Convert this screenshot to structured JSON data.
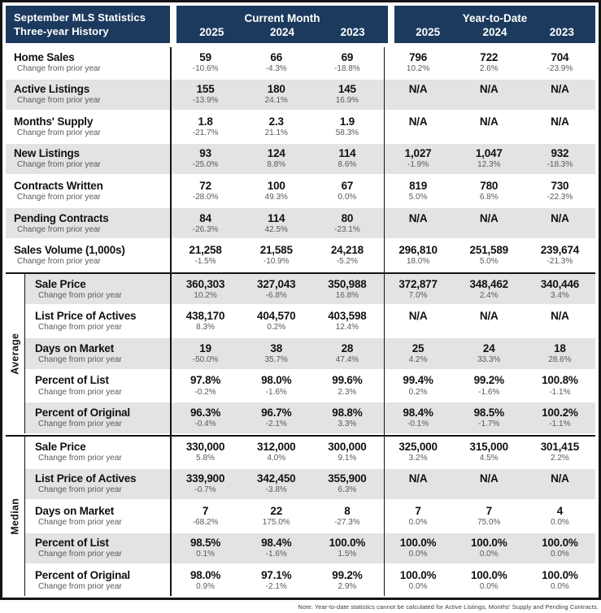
{
  "header": {
    "title_line1": "September MLS Statistics",
    "title_line2": "Three-year History",
    "group1_label": "Current Month",
    "group2_label": "Year-to-Date",
    "years": [
      "2025",
      "2024",
      "2023"
    ]
  },
  "change_label": "Change from prior year",
  "colors": {
    "header_navy": "#1c3a5e",
    "row_band_gray": "#e3e3e3",
    "border_black": "#141414",
    "change_text_gray": "#595959"
  },
  "sections": [
    {
      "name": "",
      "rows": [
        {
          "label": "Home Sales",
          "values": [
            "59",
            "66",
            "69",
            "796",
            "722",
            "704"
          ],
          "changes": [
            "-10.6%",
            "-4.3%",
            "-18.8%",
            "10.2%",
            "2.6%",
            "-23.9%"
          ]
        },
        {
          "label": "Active Listings",
          "values": [
            "155",
            "180",
            "145",
            "N/A",
            "N/A",
            "N/A"
          ],
          "changes": [
            "-13.9%",
            "24.1%",
            "16.9%",
            "",
            "",
            ""
          ]
        },
        {
          "label": "Months' Supply",
          "values": [
            "1.8",
            "2.3",
            "1.9",
            "N/A",
            "N/A",
            "N/A"
          ],
          "changes": [
            "-21.7%",
            "21.1%",
            "58.3%",
            "",
            "",
            ""
          ]
        },
        {
          "label": "New Listings",
          "values": [
            "93",
            "124",
            "114",
            "1,027",
            "1,047",
            "932"
          ],
          "changes": [
            "-25.0%",
            "8.8%",
            "8.6%",
            "-1.9%",
            "12.3%",
            "-18.3%"
          ]
        },
        {
          "label": "Contracts Written",
          "values": [
            "72",
            "100",
            "67",
            "819",
            "780",
            "730"
          ],
          "changes": [
            "-28.0%",
            "49.3%",
            "0.0%",
            "5.0%",
            "6.8%",
            "-22.3%"
          ]
        },
        {
          "label": "Pending Contracts",
          "values": [
            "84",
            "114",
            "80",
            "N/A",
            "N/A",
            "N/A"
          ],
          "changes": [
            "-26.3%",
            "42.5%",
            "-23.1%",
            "",
            "",
            ""
          ]
        },
        {
          "label": "Sales Volume (1,000s)",
          "values": [
            "21,258",
            "21,585",
            "24,218",
            "296,810",
            "251,589",
            "239,674"
          ],
          "changes": [
            "-1.5%",
            "-10.9%",
            "-5.2%",
            "18.0%",
            "5.0%",
            "-21.3%"
          ]
        }
      ]
    },
    {
      "name": "Average",
      "rows": [
        {
          "label": "Sale Price",
          "values": [
            "360,303",
            "327,043",
            "350,988",
            "372,877",
            "348,462",
            "340,446"
          ],
          "changes": [
            "10.2%",
            "-6.8%",
            "16.8%",
            "7.0%",
            "2.4%",
            "3.4%"
          ]
        },
        {
          "label": "List Price of Actives",
          "values": [
            "438,170",
            "404,570",
            "403,598",
            "N/A",
            "N/A",
            "N/A"
          ],
          "changes": [
            "8.3%",
            "0.2%",
            "12.4%",
            "",
            "",
            ""
          ]
        },
        {
          "label": "Days on Market",
          "values": [
            "19",
            "38",
            "28",
            "25",
            "24",
            "18"
          ],
          "changes": [
            "-50.0%",
            "35.7%",
            "47.4%",
            "4.2%",
            "33.3%",
            "28.6%"
          ]
        },
        {
          "label": "Percent of List",
          "values": [
            "97.8%",
            "98.0%",
            "99.6%",
            "99.4%",
            "99.2%",
            "100.8%"
          ],
          "changes": [
            "-0.2%",
            "-1.6%",
            "2.3%",
            "0.2%",
            "-1.6%",
            "-1.1%"
          ]
        },
        {
          "label": "Percent of Original",
          "values": [
            "96.3%",
            "96.7%",
            "98.8%",
            "98.4%",
            "98.5%",
            "100.2%"
          ],
          "changes": [
            "-0.4%",
            "-2.1%",
            "3.3%",
            "-0.1%",
            "-1.7%",
            "-1.1%"
          ]
        }
      ]
    },
    {
      "name": "Median",
      "rows": [
        {
          "label": "Sale Price",
          "values": [
            "330,000",
            "312,000",
            "300,000",
            "325,000",
            "315,000",
            "301,415"
          ],
          "changes": [
            "5.8%",
            "4.0%",
            "9.1%",
            "3.2%",
            "4.5%",
            "2.2%"
          ]
        },
        {
          "label": "List Price of Actives",
          "values": [
            "339,900",
            "342,450",
            "355,900",
            "N/A",
            "N/A",
            "N/A"
          ],
          "changes": [
            "-0.7%",
            "-3.8%",
            "6.3%",
            "",
            "",
            ""
          ]
        },
        {
          "label": "Days on Market",
          "values": [
            "7",
            "22",
            "8",
            "7",
            "7",
            "4"
          ],
          "changes": [
            "-68.2%",
            "175.0%",
            "-27.3%",
            "0.0%",
            "75.0%",
            "0.0%"
          ]
        },
        {
          "label": "Percent of List",
          "values": [
            "98.5%",
            "98.4%",
            "100.0%",
            "100.0%",
            "100.0%",
            "100.0%"
          ],
          "changes": [
            "0.1%",
            "-1.6%",
            "1.5%",
            "0.0%",
            "0.0%",
            "0.0%"
          ]
        },
        {
          "label": "Percent of Original",
          "values": [
            "98.0%",
            "97.1%",
            "99.2%",
            "100.0%",
            "100.0%",
            "100.0%"
          ],
          "changes": [
            "0.9%",
            "-2.1%",
            "2.9%",
            "0.0%",
            "0.0%",
            "0.0%"
          ]
        }
      ]
    }
  ],
  "note": "Note: Year-to-date statistics cannot be calculated for Active Listings, Months' Supply and Pending Contracts."
}
